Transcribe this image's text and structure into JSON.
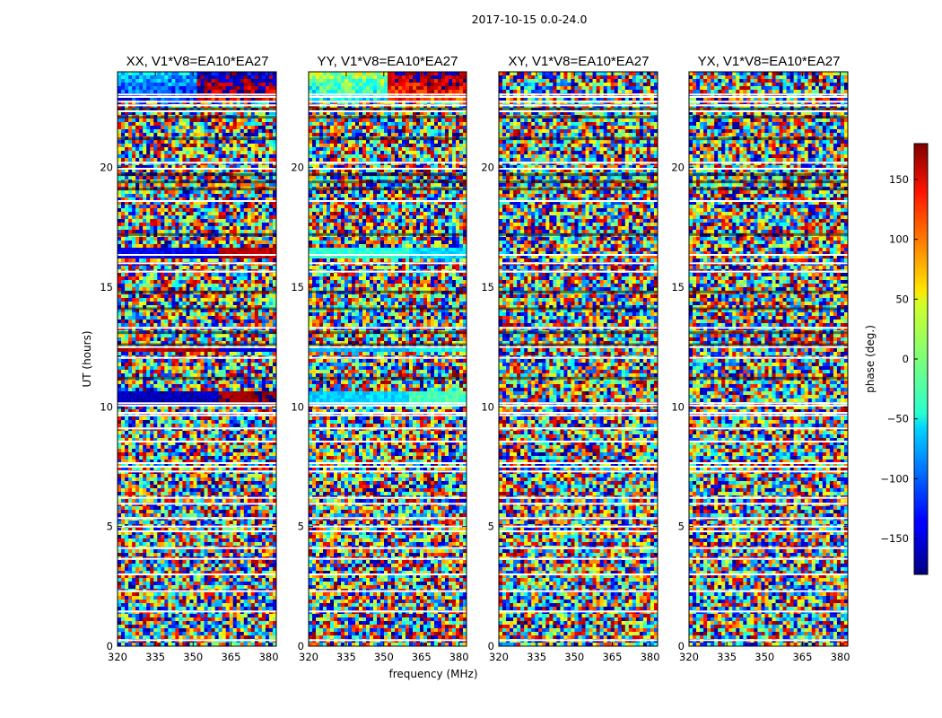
{
  "chart_data": {
    "type": "heatmap",
    "suptitle": "2017-10-15 0.0-24.0",
    "xlabel": "frequency (MHz)",
    "ylabel": "UT (hours)",
    "xlim": [
      320,
      383
    ],
    "ylim": [
      0,
      24
    ],
    "xticks": [
      320,
      335,
      350,
      365,
      380
    ],
    "yticks": [
      0,
      5,
      10,
      15,
      20
    ],
    "panels": [
      {
        "title": "XX, V1*V8=EA10*EA27"
      },
      {
        "title": "YY, V1*V8=EA10*EA27"
      },
      {
        "title": "XY, V1*V8=EA10*EA27"
      },
      {
        "title": "YX, V1*V8=EA10*EA27"
      }
    ],
    "colorbar": {
      "label": "phase (deg.)",
      "range": [
        -180,
        180
      ],
      "ticks": [
        -150,
        -100,
        -50,
        0,
        50,
        100,
        150
      ],
      "tick_labels": [
        "−150",
        "−100",
        "−50",
        "0",
        "50",
        "100",
        "150"
      ],
      "colormap": "jet"
    },
    "flagged_rows_ut": [
      0.25,
      1.45,
      2.3,
      3.0,
      3.65,
      4.1,
      4.8,
      5.0,
      5.35,
      5.95,
      6.2,
      7.3,
      7.5,
      7.65,
      8.55,
      9.1,
      9.65,
      9.75,
      10.05,
      10.15,
      12.05,
      12.5,
      13.3,
      15.65,
      16.0,
      16.35,
      18.6,
      19.95,
      20.2,
      22.35,
      22.6,
      22.75,
      22.95,
      23.05
    ],
    "black_rows_ut": [
      11.2,
      12.6,
      13.1,
      14.1,
      14.8,
      17.2,
      19.1,
      19.4,
      19.7,
      21.2,
      22.1,
      22.45
    ],
    "coherent_bands": [
      {
        "panel": 0,
        "ut": [
          16.15,
          16.65
        ],
        "phase": -140,
        "alt_phase": 160
      },
      {
        "panel": 0,
        "ut": [
          12.3,
          12.5
        ],
        "phase": 160,
        "alt_phase": -150
      },
      {
        "panel": 0,
        "ut": [
          10.0,
          10.6
        ],
        "phase": -160,
        "alt_phase": 170
      },
      {
        "panel": 1,
        "ut": [
          16.15,
          16.65
        ],
        "phase": -30,
        "alt_phase": -60
      },
      {
        "panel": 1,
        "ut": [
          12.3,
          12.5
        ],
        "phase": -70,
        "alt_phase": -40
      },
      {
        "panel": 1,
        "ut": [
          10.0,
          10.6
        ],
        "phase": -60,
        "alt_phase": -20
      }
    ]
  }
}
